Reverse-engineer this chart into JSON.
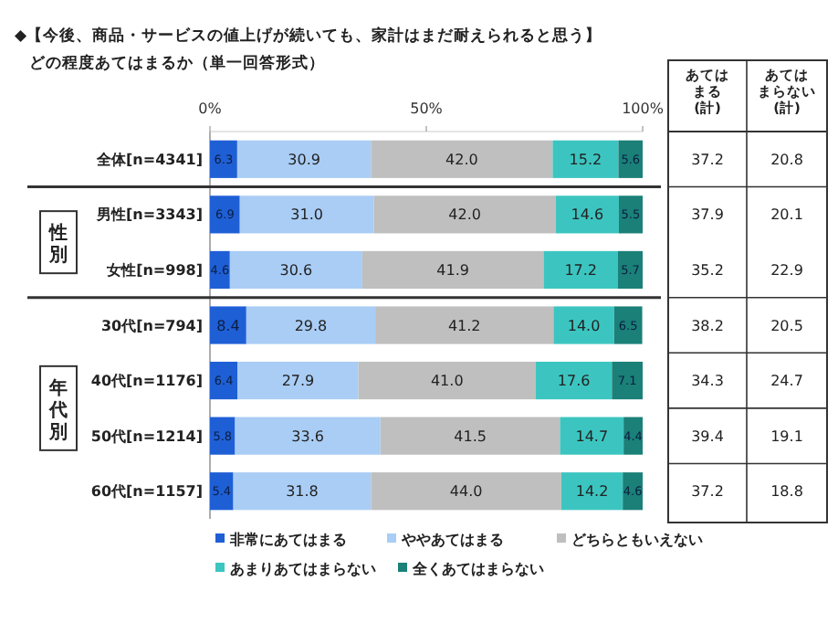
{
  "chart_data": {
    "type": "bar",
    "orientation": "horizontal",
    "stacked": true,
    "title": "◆【今後、商品・サービスの値上げが続いても、家計はまだ耐えられると思う】",
    "subtitle": "どの程度あてはまるか（単一回答形式）",
    "categories": [
      "全体[n=4341]",
      "男性[n=3343]",
      "女性[n=998]",
      "30代[n=794]",
      "40代[n=1176]",
      "50代[n=1214]",
      "60代[n=1157]"
    ],
    "series": [
      {
        "name": "非常にあてはまる",
        "color": "#1f5fd6",
        "values": [
          6.3,
          6.9,
          4.6,
          8.4,
          6.4,
          5.8,
          5.4
        ],
        "value_labels": [
          "6.3",
          "6.9",
          "4.6",
          "8.4",
          "6.4",
          "5.8",
          "5.4"
        ]
      },
      {
        "name": "ややあてはまる",
        "color": "#a9cdf5",
        "values": [
          30.9,
          31.0,
          30.6,
          29.8,
          27.9,
          33.6,
          31.8
        ],
        "value_labels": [
          "30.9",
          "31.0",
          "30.6",
          "29.8",
          "27.9",
          "33.6",
          "31.8"
        ]
      },
      {
        "name": "どちらともいえない",
        "color": "#bfbfbf",
        "values": [
          42.0,
          42.0,
          41.9,
          41.2,
          41.0,
          41.5,
          44.0
        ],
        "value_labels": [
          "42.0",
          "42.0",
          "41.9",
          "41.2",
          "41.0",
          "41.5",
          "44.0"
        ]
      },
      {
        "name": "あまりあてはまらない",
        "color": "#3cc5c0",
        "values": [
          15.2,
          14.6,
          17.2,
          14.0,
          17.6,
          14.7,
          14.2
        ],
        "value_labels": [
          "15.2",
          "14.6",
          "17.2",
          "14.0",
          "17.6",
          "14.7",
          "14.2"
        ]
      },
      {
        "name": "全くあてはまらない",
        "color": "#1a8078",
        "values": [
          5.6,
          5.5,
          5.7,
          6.5,
          7.1,
          4.4,
          4.6
        ],
        "value_labels": [
          "5.6",
          "5.5",
          "5.7",
          "6.5",
          "7.1",
          "4.4",
          "4.6"
        ]
      }
    ],
    "xlim": [
      0,
      100
    ],
    "xticks": [
      {
        "value": 0,
        "label": "0%"
      },
      {
        "value": 50,
        "label": "50%"
      },
      {
        "value": 100,
        "label": "100%"
      }
    ],
    "legend": "bottom",
    "annotations": [
      "性別",
      "年代別",
      "あてはまる(計)",
      "あてはまらない(計)",
      "37.2",
      "20.8",
      "37.9",
      "20.1",
      "35.2",
      "22.9",
      "38.2",
      "20.5",
      "34.3",
      "24.7",
      "39.4",
      "19.1",
      "37.2",
      "18.8"
    ]
  }
}
